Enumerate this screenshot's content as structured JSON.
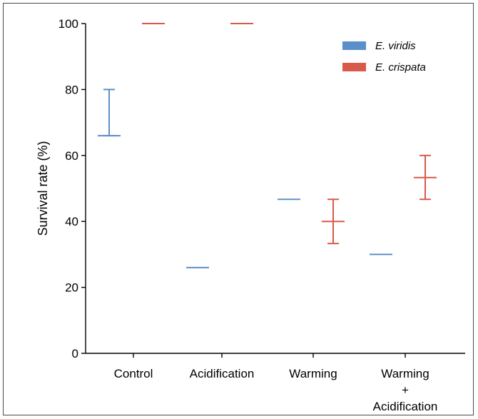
{
  "chart_data": {
    "type": "errorbar",
    "categories": [
      "Control",
      "Acidification",
      "Warming",
      "Warming\n+\nAcidification"
    ],
    "ylabel": "Survival rate (%)",
    "xlabel": "",
    "ylim": [
      0,
      100
    ],
    "yticks": [
      0,
      20,
      40,
      60,
      80,
      100
    ],
    "legend_position": "top-right",
    "series": [
      {
        "name": "E. viridis",
        "color": "#5b8fc9",
        "mean": [
          66,
          26,
          46.7,
          30
        ],
        "upper": [
          80,
          26,
          46.7,
          30
        ],
        "lower": [
          66,
          26,
          46.7,
          30
        ]
      },
      {
        "name": "E. crispata",
        "color": "#d9594a",
        "mean": [
          100,
          100,
          40,
          53.3
        ],
        "upper": [
          100,
          100,
          46.7,
          60
        ],
        "lower": [
          100,
          100,
          33.3,
          46.7
        ]
      }
    ]
  }
}
